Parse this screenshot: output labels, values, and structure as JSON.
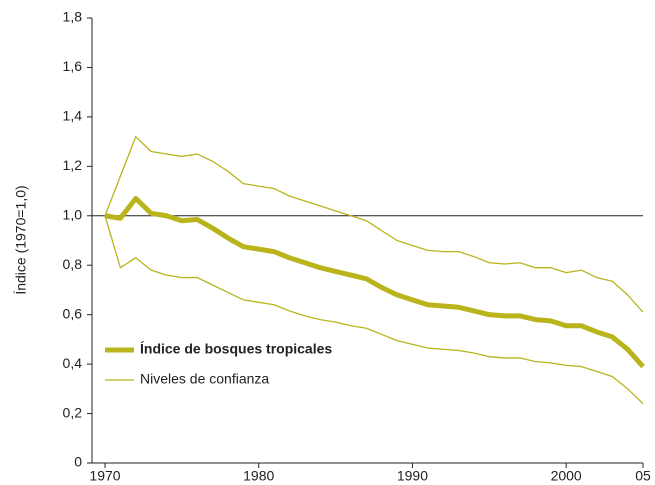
{
  "chart_data": {
    "type": "line",
    "ylabel": "Índice (1970=1,0)",
    "x": [
      1970,
      1971,
      1972,
      1973,
      1974,
      1975,
      1976,
      1977,
      1978,
      1979,
      1980,
      1981,
      1982,
      1983,
      1984,
      1985,
      1986,
      1987,
      1988,
      1989,
      1990,
      1991,
      1992,
      1993,
      1994,
      1995,
      1996,
      1997,
      1998,
      1999,
      2000,
      2001,
      2002,
      2003,
      2004,
      2005
    ],
    "series": [
      {
        "name": "Índice de bosques tropicales",
        "color": "#b9b41c",
        "values": [
          1.0,
          0.99,
          1.07,
          1.01,
          1.0,
          0.98,
          0.985,
          0.95,
          0.91,
          0.875,
          0.865,
          0.855,
          0.83,
          0.81,
          0.79,
          0.775,
          0.76,
          0.745,
          0.71,
          0.68,
          0.66,
          0.64,
          0.635,
          0.63,
          0.615,
          0.6,
          0.595,
          0.595,
          0.58,
          0.575,
          0.555,
          0.555,
          0.53,
          0.51,
          0.46,
          0.39
        ]
      },
      {
        "name": "Niveles de confianza",
        "color": "#b9b41c",
        "upper": [
          1.0,
          1.16,
          1.32,
          1.26,
          1.25,
          1.24,
          1.25,
          1.22,
          1.18,
          1.13,
          1.12,
          1.11,
          1.08,
          1.06,
          1.04,
          1.02,
          1.0,
          0.98,
          0.94,
          0.9,
          0.88,
          0.86,
          0.855,
          0.855,
          0.835,
          0.81,
          0.805,
          0.81,
          0.79,
          0.79,
          0.77,
          0.78,
          0.75,
          0.735,
          0.68,
          0.61
        ],
        "lower": [
          1.0,
          0.79,
          0.83,
          0.78,
          0.76,
          0.75,
          0.75,
          0.72,
          0.69,
          0.66,
          0.65,
          0.64,
          0.615,
          0.595,
          0.58,
          0.57,
          0.555,
          0.545,
          0.52,
          0.495,
          0.48,
          0.465,
          0.46,
          0.455,
          0.445,
          0.43,
          0.425,
          0.425,
          0.41,
          0.405,
          0.395,
          0.39,
          0.37,
          0.35,
          0.3,
          0.24
        ]
      }
    ],
    "reference_line": 1,
    "xlim": [
      1970,
      2005
    ],
    "xticks": [
      1970,
      1980,
      1990,
      2000,
      {
        "value": 2005,
        "label": "05"
      }
    ],
    "ylim": [
      0,
      1.8
    ],
    "yticks": [
      0,
      {
        "value": 0.2,
        "label": "0,2"
      },
      {
        "value": 0.4,
        "label": "0,4"
      },
      {
        "value": 0.6,
        "label": "0,6"
      },
      {
        "value": 0.8,
        "label": "0,8"
      },
      {
        "value": 1.0,
        "label": "1,0"
      },
      {
        "value": 1.2,
        "label": "1,2"
      },
      {
        "value": 1.4,
        "label": "1,4"
      },
      {
        "value": 1.6,
        "label": "1,6"
      },
      {
        "value": 1.8,
        "label": "1,8"
      }
    ]
  }
}
